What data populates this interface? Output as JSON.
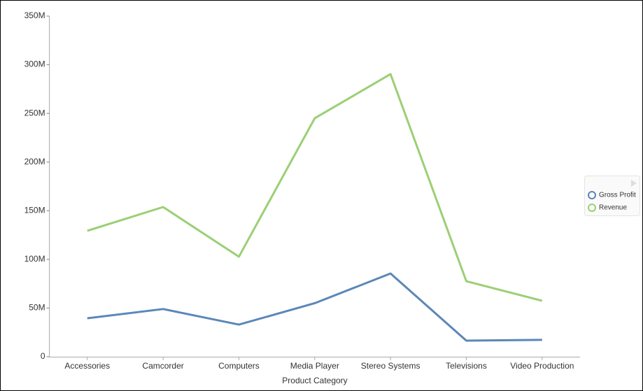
{
  "chart_data": {
    "type": "line",
    "x_label": "Product Category",
    "categories": [
      "Accessories",
      "Camcorder",
      "Computers",
      "Media Player",
      "Stereo Systems",
      "Televisions",
      "Video Production"
    ],
    "series": [
      {
        "name": "Gross Profit",
        "color": "#5a87b8",
        "values": [
          39500000,
          49000000,
          33000000,
          55000000,
          85500000,
          16500000,
          17300000
        ]
      },
      {
        "name": "Revenue",
        "color": "#9bcf75",
        "values": [
          129400000,
          153800000,
          102800000,
          245000000,
          290400000,
          77600000,
          57500000
        ]
      }
    ],
    "ylim": [
      0,
      350000000
    ],
    "yticks": [
      0,
      {
        "value": 50000000,
        "label": "50M"
      },
      {
        "value": 100000000,
        "label": "100M"
      },
      {
        "value": 150000000,
        "label": "150M"
      },
      {
        "value": 200000000,
        "label": "200M"
      },
      {
        "value": 250000000,
        "label": "250M"
      },
      {
        "value": 300000000,
        "label": "300M"
      },
      {
        "value": 350000000,
        "label": "350M"
      }
    ],
    "legend": "right"
  }
}
